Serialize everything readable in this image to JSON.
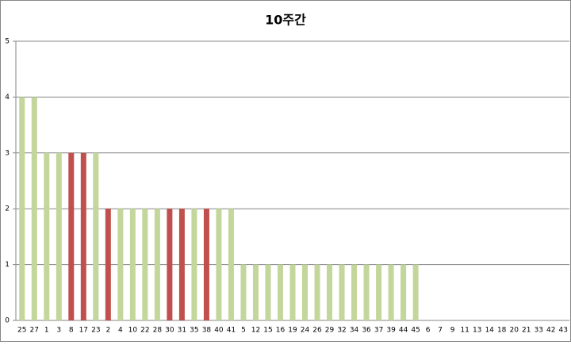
{
  "chart_data": {
    "type": "bar",
    "title": "10주간",
    "categories": [
      "25",
      "27",
      "1",
      "3",
      "8",
      "17",
      "23",
      "2",
      "4",
      "10",
      "22",
      "28",
      "30",
      "31",
      "35",
      "38",
      "40",
      "41",
      "5",
      "12",
      "15",
      "16",
      "19",
      "24",
      "26",
      "29",
      "32",
      "34",
      "36",
      "37",
      "39",
      "44",
      "45",
      "6",
      "7",
      "9",
      "11",
      "13",
      "14",
      "18",
      "20",
      "21",
      "33",
      "42",
      "43"
    ],
    "values": [
      4,
      4,
      3,
      3,
      3,
      3,
      3,
      2,
      2,
      2,
      2,
      2,
      2,
      2,
      2,
      2,
      2,
      2,
      1,
      1,
      1,
      1,
      1,
      1,
      1,
      1,
      1,
      1,
      1,
      1,
      1,
      1,
      1,
      0,
      0,
      0,
      0,
      0,
      0,
      0,
      0,
      0,
      0,
      0,
      0
    ],
    "colors": [
      "#c3d69b",
      "#c3d69b",
      "#c3d69b",
      "#c3d69b",
      "#c0504d",
      "#c0504d",
      "#c3d69b",
      "#c0504d",
      "#c3d69b",
      "#c3d69b",
      "#c3d69b",
      "#c3d69b",
      "#c0504d",
      "#c0504d",
      "#c3d69b",
      "#c0504d",
      "#c3d69b",
      "#c3d69b",
      "#c3d69b",
      "#c3d69b",
      "#c3d69b",
      "#c3d69b",
      "#c3d69b",
      "#c3d69b",
      "#c3d69b",
      "#c3d69b",
      "#c3d69b",
      "#c3d69b",
      "#c3d69b",
      "#c3d69b",
      "#c3d69b",
      "#c3d69b",
      "#c3d69b",
      "#c3d69b",
      "#c3d69b",
      "#c3d69b",
      "#c3d69b",
      "#c3d69b",
      "#c3d69b",
      "#c3d69b",
      "#c3d69b",
      "#c3d69b",
      "#c3d69b",
      "#c3d69b",
      "#c3d69b"
    ],
    "ylim": [
      0,
      5
    ],
    "yticks": [
      0,
      1,
      2,
      3,
      4,
      5
    ],
    "grid": true
  }
}
